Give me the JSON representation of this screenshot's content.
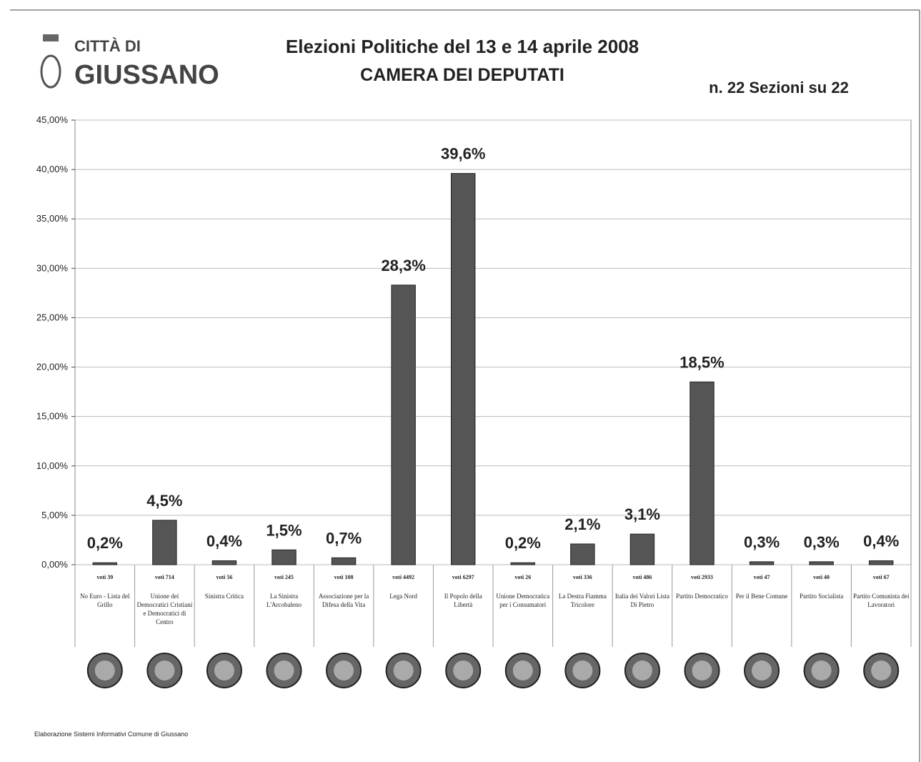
{
  "header": {
    "city_top": "CITTÀ DI",
    "city_name": "GIUSSANO",
    "sections": "n. 22 Sezioni su 22"
  },
  "chart_data": {
    "type": "bar",
    "title": "Elezioni Politiche del 13 e 14 aprile 2008",
    "subtitle": "CAMERA DEI DEPUTATI",
    "categories": [
      "No Euro - Lista del Grillo",
      "Unione dei Democratici Cristiani e Democratici di Centro",
      "Sinistra Critica",
      "La Sinistra L'Arcobaleno",
      "Associazione per la Difesa della Vita",
      "Lega Nord",
      "Il Popolo della Libertà",
      "Unione Democratica per i Consumatori",
      "La Destra Fiamma Tricolore",
      "Italia dei Valori Lista Di Pietro",
      "Partito Democratico",
      "Per il Bene Comune",
      "Partito Socialista",
      "Partito Comunista dei Lavoratori"
    ],
    "votes": [
      "voti 39",
      "voti 714",
      "voti 56",
      "voti 245",
      "voti 108",
      "voti 4492",
      "voti 6297",
      "voti 26",
      "voti 336",
      "voti 486",
      "voti 2933",
      "voti 47",
      "voti 40",
      "voti 67"
    ],
    "values": [
      0.2,
      4.5,
      0.4,
      1.5,
      0.7,
      28.3,
      39.6,
      0.2,
      2.1,
      3.1,
      18.5,
      0.3,
      0.3,
      0.4
    ],
    "value_labels": [
      "0,2%",
      "4,5%",
      "0,4%",
      "1,5%",
      "0,7%",
      "28,3%",
      "39,6%",
      "0,2%",
      "2,1%",
      "3,1%",
      "18,5%",
      "0,3%",
      "0,3%",
      "0,4%"
    ],
    "color": "#555555",
    "ylim": [
      0,
      45
    ],
    "yticks": [
      {
        "value": 0,
        "label": "0,00%"
      },
      {
        "value": 5,
        "label": "5,00%"
      },
      {
        "value": 10,
        "label": "10,00%"
      },
      {
        "value": 15,
        "label": "15,00%"
      },
      {
        "value": 20,
        "label": "20,00%"
      },
      {
        "value": 25,
        "label": "25,00%"
      },
      {
        "value": 30,
        "label": "30,00%"
      },
      {
        "value": 35,
        "label": "35,00%"
      },
      {
        "value": 40,
        "label": "40,00%"
      },
      {
        "value": 45,
        "label": "45,00%"
      }
    ],
    "grid": true
  },
  "footer": "Elaborazione Sistemi Informativi Comune di Giussano"
}
